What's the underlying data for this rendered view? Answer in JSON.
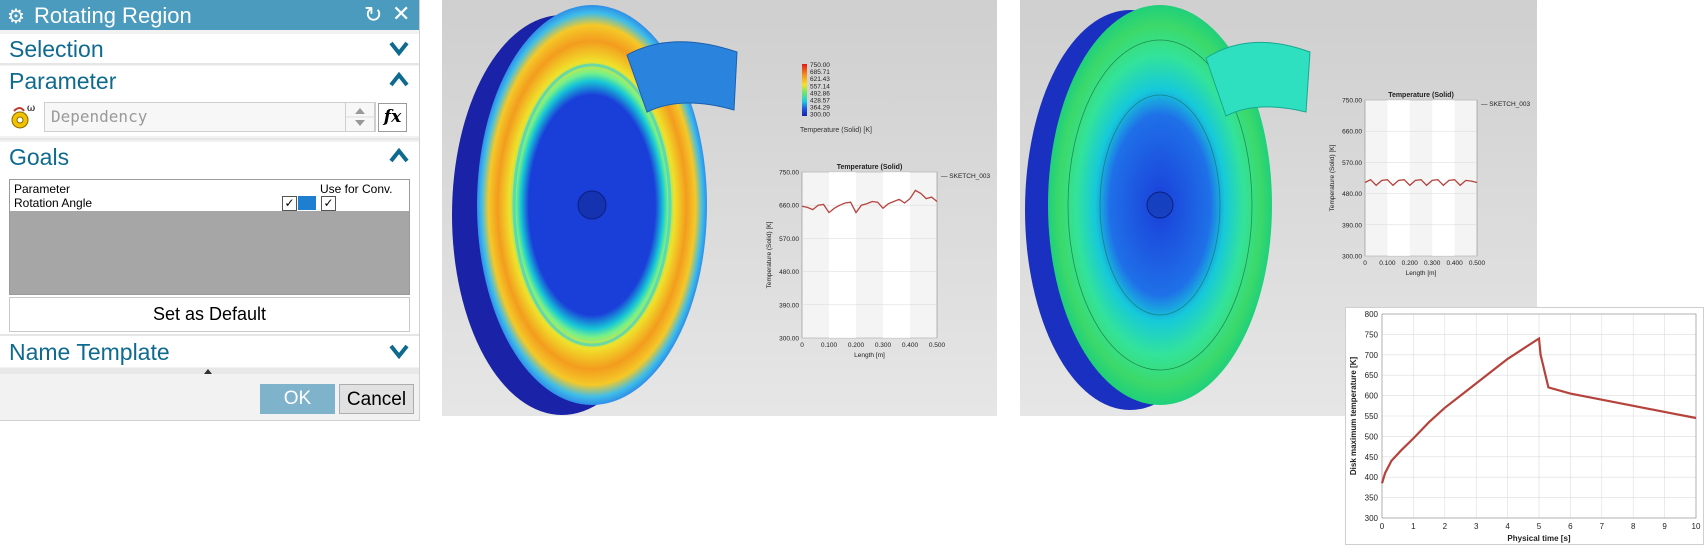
{
  "dialog": {
    "title": "Rotating Region",
    "sections": {
      "selection": "Selection",
      "parameter": "Parameter",
      "goals": "Goals",
      "name_template": "Name Template"
    },
    "dependency_placeholder": "Dependency",
    "fx_label": "fx",
    "goals_table": {
      "col_parameter": "Parameter",
      "col_use": "Use for Conv.",
      "row_label": "Rotation Angle"
    },
    "set_default": "Set as Default",
    "ok": "OK",
    "cancel": "Cancel"
  },
  "colors": {
    "title_bar": "#4a9bbd",
    "section_title": "#0f6a8f",
    "ok": "#7fb3cc",
    "curve": "#b5433c"
  },
  "legend": {
    "values": [
      "750.00",
      "685.71",
      "621.43",
      "557.14",
      "492.86",
      "428.57",
      "364.29",
      "300.00"
    ],
    "title": "Temperature (Solid) [K]"
  },
  "chart1": {
    "title": "Temperature (Solid)",
    "legend": "SKETCH_003",
    "ylabel": "Temperature (Solid) [K]",
    "xlabel": "Length [m]",
    "yticks": [
      "750.00",
      "660.00",
      "570.00",
      "480.00",
      "390.00",
      "300.00"
    ],
    "xticks": [
      "0",
      "0.100",
      "0.200",
      "0.300",
      "0.400",
      "0.500"
    ]
  },
  "chart2": {
    "title": "Temperature (Solid)",
    "legend": "SKETCH_003",
    "ylabel": "Temperature (Solid) [K]",
    "xlabel": "Length [m]",
    "yticks": [
      "750.00",
      "660.00",
      "570.00",
      "480.00",
      "390.00",
      "300.00"
    ],
    "xticks": [
      "0",
      "0.100",
      "0.200",
      "0.300",
      "0.400",
      "0.500"
    ]
  },
  "chart3": {
    "ylabel": "Disk maximum temperature [K]",
    "xlabel": "Physical time [s]",
    "yticks": [
      "800",
      "750",
      "700",
      "650",
      "600",
      "550",
      "500",
      "450",
      "400",
      "350",
      "300"
    ],
    "xticks": [
      "0",
      "1",
      "2",
      "3",
      "4",
      "5",
      "6",
      "7",
      "8",
      "9",
      "10"
    ]
  },
  "chart_data": [
    {
      "type": "line",
      "title": "Temperature (Solid)",
      "series": [
        {
          "name": "SKETCH_003",
          "x": [
            0,
            0.02,
            0.04,
            0.06,
            0.08,
            0.1,
            0.12,
            0.14,
            0.16,
            0.18,
            0.2,
            0.22,
            0.24,
            0.26,
            0.28,
            0.3,
            0.32,
            0.34,
            0.36,
            0.38,
            0.4,
            0.42,
            0.44,
            0.46,
            0.48,
            0.5
          ],
          "values": [
            657,
            654,
            648,
            660,
            662,
            640,
            652,
            660,
            666,
            668,
            640,
            660,
            664,
            670,
            668,
            652,
            664,
            670,
            676,
            666,
            678,
            700,
            692,
            678,
            682,
            670
          ]
        }
      ],
      "xlabel": "Length [m]",
      "ylabel": "Temperature (Solid) [K]",
      "xlim": [
        0,
        0.5
      ],
      "ylim": [
        300,
        750
      ]
    },
    {
      "type": "line",
      "title": "Temperature (Solid)",
      "series": [
        {
          "name": "SKETCH_003",
          "x": [
            0,
            0.025,
            0.05,
            0.075,
            0.1,
            0.125,
            0.15,
            0.175,
            0.2,
            0.225,
            0.25,
            0.275,
            0.3,
            0.325,
            0.35,
            0.375,
            0.4,
            0.425,
            0.45,
            0.475,
            0.5
          ],
          "values": [
            512,
            520,
            504,
            518,
            520,
            504,
            518,
            520,
            504,
            518,
            520,
            504,
            518,
            520,
            504,
            518,
            520,
            504,
            518,
            516,
            512
          ]
        }
      ],
      "xlabel": "Length [m]",
      "ylabel": "Temperature (Solid) [K]",
      "xlim": [
        0,
        0.5
      ],
      "ylim": [
        300,
        750
      ]
    },
    {
      "type": "line",
      "series": [
        {
          "name": "Disk maximum temperature",
          "x": [
            0,
            0.1,
            0.3,
            0.6,
            1,
            1.5,
            2,
            2.5,
            3,
            3.5,
            4,
            4.5,
            5,
            5.05,
            5.3,
            6,
            7,
            8,
            9,
            10
          ],
          "values": [
            385,
            410,
            440,
            465,
            495,
            535,
            570,
            600,
            630,
            660,
            690,
            715,
            740,
            700,
            620,
            605,
            590,
            575,
            560,
            545
          ]
        }
      ],
      "xlabel": "Physical time [s]",
      "ylabel": "Disk maximum temperature [K]",
      "xlim": [
        0,
        10
      ],
      "ylim": [
        300,
        800
      ]
    }
  ]
}
